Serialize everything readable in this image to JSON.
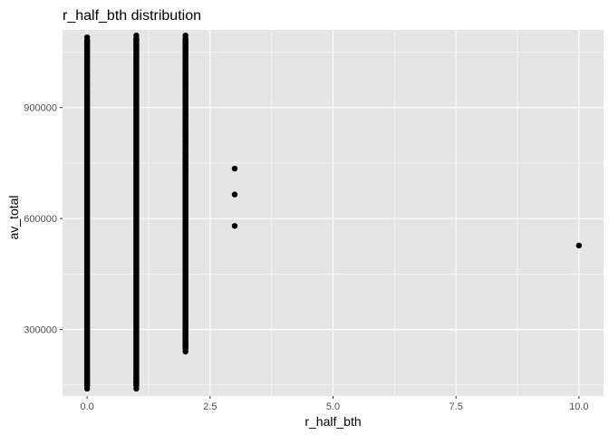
{
  "chart_data": {
    "type": "scatter",
    "title": "r_half_bth  distribution",
    "xlabel": "r_half_bth",
    "ylabel": "av_total",
    "xlim": [
      -0.5,
      10.5
    ],
    "ylim": [
      120000,
      1110000
    ],
    "x_ticks": [
      0,
      2.5,
      5,
      7.5,
      10
    ],
    "x_tick_labels": [
      "0.0",
      "2.5",
      "5.0",
      "7.5",
      "10.0"
    ],
    "y_ticks": [
      300000,
      600000,
      900000
    ],
    "y_tick_labels": [
      "300000",
      "600000",
      "900000"
    ],
    "grid": true,
    "point_color": "#000000",
    "panel_background": "#e5e5e5",
    "grid_color": "#ffffff",
    "columns": [
      {
        "x": 0,
        "y_min": 140000,
        "y_max": 1090000
      },
      {
        "x": 1,
        "y_min": 140000,
        "y_max": 1095000
      },
      {
        "x": 2,
        "y_min": 240000,
        "y_max": 1095000
      }
    ],
    "points": [
      {
        "x": 0,
        "y": 1090000
      },
      {
        "x": 0,
        "y": 1080000
      },
      {
        "x": 0,
        "y": 1060000
      },
      {
        "x": 0,
        "y": 1050000
      },
      {
        "x": 0,
        "y": 1035000
      },
      {
        "x": 0,
        "y": 1000000
      },
      {
        "x": 0,
        "y": 985000
      },
      {
        "x": 0,
        "y": 960000
      },
      {
        "x": 0,
        "y": 940000
      },
      {
        "x": 0,
        "y": 180000
      },
      {
        "x": 0,
        "y": 165000
      },
      {
        "x": 0,
        "y": 140000
      },
      {
        "x": 1,
        "y": 1095000
      },
      {
        "x": 1,
        "y": 1085000
      },
      {
        "x": 1,
        "y": 1070000
      },
      {
        "x": 1,
        "y": 170000
      },
      {
        "x": 1,
        "y": 158000
      },
      {
        "x": 1,
        "y": 140000
      },
      {
        "x": 2,
        "y": 1095000
      },
      {
        "x": 2,
        "y": 1075000
      },
      {
        "x": 2,
        "y": 1065000
      },
      {
        "x": 2,
        "y": 1055000
      },
      {
        "x": 2,
        "y": 980000
      },
      {
        "x": 2,
        "y": 965000
      },
      {
        "x": 2,
        "y": 945000
      },
      {
        "x": 2,
        "y": 930000
      },
      {
        "x": 2,
        "y": 895000
      },
      {
        "x": 2,
        "y": 880000
      },
      {
        "x": 2,
        "y": 830000
      },
      {
        "x": 2,
        "y": 815000
      },
      {
        "x": 2,
        "y": 800000
      },
      {
        "x": 2,
        "y": 770000
      },
      {
        "x": 2,
        "y": 750000
      },
      {
        "x": 2,
        "y": 730000
      },
      {
        "x": 2,
        "y": 320000
      },
      {
        "x": 2,
        "y": 300000
      },
      {
        "x": 2,
        "y": 285000
      },
      {
        "x": 2,
        "y": 265000
      },
      {
        "x": 2,
        "y": 240000
      },
      {
        "x": 3,
        "y": 735000
      },
      {
        "x": 3,
        "y": 665000
      },
      {
        "x": 3,
        "y": 580000
      },
      {
        "x": 10,
        "y": 527000
      }
    ]
  }
}
